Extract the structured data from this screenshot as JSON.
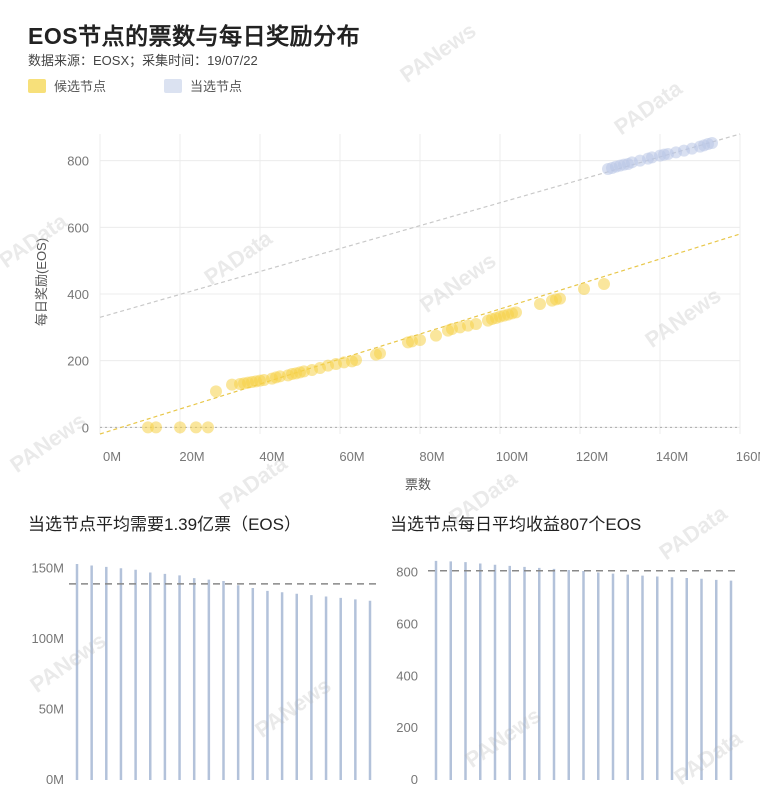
{
  "header": {
    "title": "EOS节点的票数与每日奖励分布",
    "subtitle": "数据来源：EOSX；采集时间：19/07/22"
  },
  "legend": [
    {
      "label": "候选节点",
      "color": "#f7e07a"
    },
    {
      "label": "当选节点",
      "color": "#cdd6ec"
    }
  ],
  "colors": {
    "candidate_point": "#f5d24b",
    "elected_point": "#b9c6e6",
    "candidate_line": "#e8c74a",
    "elected_line": "#c9c9c9",
    "bar": "#b3c2da",
    "avg_line": "#888888",
    "grid": "#ececec"
  },
  "watermarks": [
    "PANews",
    "PAData"
  ],
  "chart_data": [
    {
      "type": "scatter",
      "title": "",
      "xlabel": "票数",
      "ylabel": "每日奖励(EOS)",
      "xlim": [
        0,
        160
      ],
      "ylim": [
        -20,
        880
      ],
      "x_ticks": [
        {
          "value": 0,
          "label": "0M"
        },
        {
          "value": 20,
          "label": "20M"
        },
        {
          "value": 40,
          "label": "40M"
        },
        {
          "value": 60,
          "label": "60M"
        },
        {
          "value": 80,
          "label": "80M"
        },
        {
          "value": 100,
          "label": "100M"
        },
        {
          "value": 120,
          "label": "120M"
        },
        {
          "value": 140,
          "label": "140M"
        },
        {
          "value": 160,
          "label": "160M"
        }
      ],
      "y_ticks": [
        {
          "value": 0,
          "label": "0"
        },
        {
          "value": 200,
          "label": "200"
        },
        {
          "value": 400,
          "label": "400"
        },
        {
          "value": 600,
          "label": "600"
        },
        {
          "value": 800,
          "label": "800"
        }
      ],
      "grid": true,
      "series": [
        {
          "name": "候选节点",
          "points": [
            [
              12,
              0
            ],
            [
              14,
              0
            ],
            [
              20,
              0
            ],
            [
              24,
              0
            ],
            [
              27,
              0
            ],
            [
              29,
              108
            ],
            [
              33,
              128
            ],
            [
              35,
              130
            ],
            [
              36,
              132
            ],
            [
              37,
              134
            ],
            [
              38,
              136
            ],
            [
              39,
              138
            ],
            [
              40,
              140
            ],
            [
              41,
              142
            ],
            [
              43,
              146
            ],
            [
              44,
              150
            ],
            [
              45,
              153
            ],
            [
              47,
              156
            ],
            [
              48,
              160
            ],
            [
              49,
              162
            ],
            [
              50,
              165
            ],
            [
              51,
              168
            ],
            [
              53,
              172
            ],
            [
              55,
              178
            ],
            [
              57,
              185
            ],
            [
              59,
              190
            ],
            [
              61,
              195
            ],
            [
              63,
              198
            ],
            [
              64,
              202
            ],
            [
              69,
              218
            ],
            [
              70,
              222
            ],
            [
              77,
              255
            ],
            [
              78,
              258
            ],
            [
              80,
              262
            ],
            [
              84,
              275
            ],
            [
              87,
              290
            ],
            [
              88,
              295
            ],
            [
              90,
              300
            ],
            [
              92,
              305
            ],
            [
              94,
              310
            ],
            [
              97,
              320
            ],
            [
              98,
              325
            ],
            [
              99,
              328
            ],
            [
              100,
              332
            ],
            [
              101,
              335
            ],
            [
              102,
              338
            ],
            [
              103,
              342
            ],
            [
              104,
              345
            ],
            [
              110,
              370
            ],
            [
              113,
              380
            ],
            [
              114,
              384
            ],
            [
              115,
              386
            ],
            [
              121,
              415
            ],
            [
              126,
              430
            ]
          ]
        },
        {
          "name": "当选节点",
          "points": [
            [
              127,
              775
            ],
            [
              128,
              778
            ],
            [
              129,
              782
            ],
            [
              130,
              785
            ],
            [
              131,
              788
            ],
            [
              132,
              790
            ],
            [
              133,
              795
            ],
            [
              135,
              800
            ],
            [
              137,
              806
            ],
            [
              138,
              810
            ],
            [
              140,
              815
            ],
            [
              141,
              818
            ],
            [
              142,
              820
            ],
            [
              144,
              825
            ],
            [
              146,
              830
            ],
            [
              148,
              836
            ],
            [
              150,
              842
            ],
            [
              151,
              846
            ],
            [
              152,
              850
            ],
            [
              153,
              853
            ]
          ]
        }
      ],
      "trend_lines": [
        {
          "series": "当选节点",
          "from": [
            0,
            330
          ],
          "to": [
            160,
            880
          ]
        },
        {
          "series": "候选节点",
          "from": [
            0,
            -20
          ],
          "to": [
            160,
            580
          ]
        }
      ],
      "reference_line": {
        "y": 0
      }
    },
    {
      "type": "bar",
      "title": "当选节点平均需要1.39亿票（EOS）",
      "y_ticks": [
        {
          "value": 0,
          "label": "0M"
        },
        {
          "value": 50,
          "label": "50M"
        },
        {
          "value": 100,
          "label": "100M"
        },
        {
          "value": 150,
          "label": "150M"
        }
      ],
      "ylim": [
        0,
        158
      ],
      "values": [
        153,
        152,
        151,
        150,
        149,
        147,
        146,
        145,
        143,
        142,
        141,
        138,
        136,
        134,
        133,
        132,
        131,
        130,
        129,
        128,
        127
      ],
      "average": 139
    },
    {
      "type": "bar",
      "title": "当选节点每日平均收益807个EOS",
      "y_ticks": [
        {
          "value": 0,
          "label": "0"
        },
        {
          "value": 200,
          "label": "200"
        },
        {
          "value": 400,
          "label": "400"
        },
        {
          "value": 600,
          "label": "600"
        },
        {
          "value": 800,
          "label": "800"
        }
      ],
      "ylim": [
        0,
        860
      ],
      "values": [
        845,
        843,
        840,
        835,
        830,
        826,
        822,
        818,
        814,
        810,
        806,
        800,
        796,
        792,
        788,
        785,
        782,
        779,
        776,
        772,
        769
      ],
      "average": 807
    }
  ]
}
